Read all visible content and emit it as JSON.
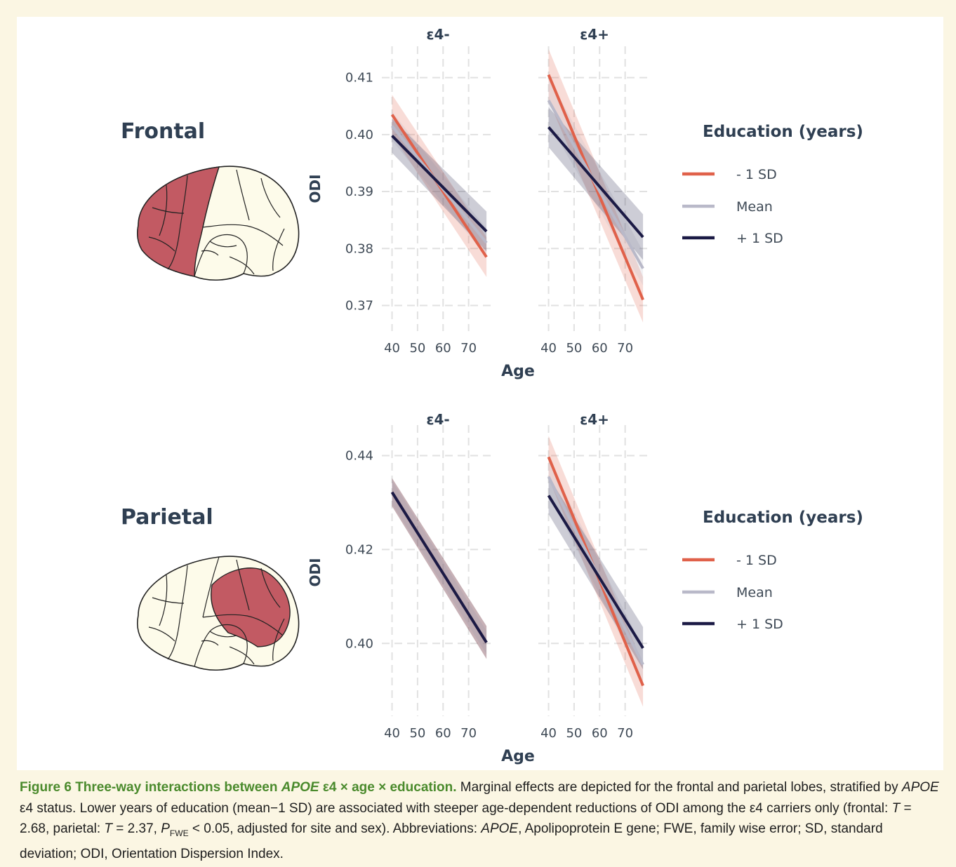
{
  "colors": {
    "minus_sd": "#e0614a",
    "mean": "#b9b9c9",
    "plus_sd": "#1b1a45",
    "region_fill": "#c25a63",
    "brain_fill": "#fdfbea",
    "background": "#fbf6e3",
    "caption_label": "#4a8a2c"
  },
  "rows": [
    {
      "region": "Frontal",
      "highlighted_lobe": "frontal",
      "legend": {
        "title": "Education (years)",
        "items": [
          {
            "label": "- 1 SD",
            "color": "#e0614a"
          },
          {
            "label": "Mean",
            "color": "#b9b9c9"
          },
          {
            "label": "+ 1 SD",
            "color": "#1b1a45"
          }
        ]
      }
    },
    {
      "region": "Parietal",
      "highlighted_lobe": "parietal",
      "legend": {
        "title": "Education (years)",
        "items": [
          {
            "label": "- 1 SD",
            "color": "#e0614a"
          },
          {
            "label": "Mean",
            "color": "#b9b9c9"
          },
          {
            "label": "+ 1 SD",
            "color": "#1b1a45"
          }
        ]
      }
    }
  ],
  "chart_data": [
    {
      "type": "line",
      "region": "Frontal",
      "facet": "ε4-",
      "xlabel": "Age",
      "ylabel": "ODI",
      "xlim": [
        36,
        80
      ],
      "ylim": [
        0.3655,
        0.4155
      ],
      "xticks": [
        40,
        50,
        60,
        70
      ],
      "yticks": [
        0.37,
        0.38,
        0.39,
        0.4,
        0.41
      ],
      "ytick_labels": [
        "0.37",
        "0.38",
        "0.39",
        "0.40",
        "0.41"
      ],
      "grid": true,
      "x": [
        40,
        77
      ],
      "series": [
        {
          "name": "- 1 SD",
          "color": "#e0614a",
          "values": [
            0.4035,
            0.3785
          ],
          "ci": [
            0.0035,
            0.0035
          ]
        },
        {
          "name": "Mean",
          "color": "#b9b9c9",
          "values": [
            0.4015,
            0.381
          ],
          "ci": [
            0.0025,
            0.0025
          ]
        },
        {
          "name": "+ 1 SD",
          "color": "#1b1a45",
          "values": [
            0.3998,
            0.383
          ],
          "ci": [
            0.003,
            0.0035
          ]
        }
      ]
    },
    {
      "type": "line",
      "region": "Frontal",
      "facet": "ε4+",
      "xlabel": "Age",
      "ylabel": "ODI",
      "xlim": [
        36,
        80
      ],
      "ylim": [
        0.3655,
        0.4155
      ],
      "xticks": [
        40,
        50,
        60,
        70
      ],
      "yticks": [
        0.37,
        0.38,
        0.39,
        0.4,
        0.41
      ],
      "ytick_labels": [
        "0.37",
        "0.38",
        "0.39",
        "0.40",
        "0.41"
      ],
      "grid": true,
      "x": [
        40,
        77
      ],
      "series": [
        {
          "name": "- 1 SD",
          "color": "#e0614a",
          "values": [
            0.4105,
            0.371
          ],
          "ci": [
            0.0045,
            0.004
          ]
        },
        {
          "name": "Mean",
          "color": "#b9b9c9",
          "values": [
            0.406,
            0.3765
          ],
          "ci": [
            0.004,
            0.003
          ]
        },
        {
          "name": "+ 1 SD",
          "color": "#1b1a45",
          "values": [
            0.4013,
            0.382
          ],
          "ci": [
            0.0035,
            0.004
          ]
        }
      ]
    },
    {
      "type": "line",
      "region": "Parietal",
      "facet": "ε4-",
      "xlabel": "Age",
      "ylabel": "ODI",
      "xlim": [
        36,
        80
      ],
      "ylim": [
        0.3845,
        0.4465
      ],
      "xticks": [
        40,
        50,
        60,
        70
      ],
      "yticks": [
        0.4,
        0.42,
        0.44
      ],
      "ytick_labels": [
        "0.40",
        "0.42",
        "0.44"
      ],
      "grid": true,
      "x": [
        40,
        77
      ],
      "series": [
        {
          "name": "- 1 SD",
          "color": "#e0614a",
          "values": [
            0.4322,
            0.4002
          ],
          "ci": [
            0.003,
            0.0035
          ]
        },
        {
          "name": "Mean",
          "color": "#b9b9c9",
          "values": [
            0.4322,
            0.4002
          ],
          "ci": [
            0.0025,
            0.0025
          ]
        },
        {
          "name": "+ 1 SD",
          "color": "#1b1a45",
          "values": [
            0.4322,
            0.4002
          ],
          "ci": [
            0.003,
            0.0035
          ]
        }
      ]
    },
    {
      "type": "line",
      "region": "Parietal",
      "facet": "ε4+",
      "xlabel": "Age",
      "ylabel": "ODI",
      "xlim": [
        36,
        80
      ],
      "ylim": [
        0.3845,
        0.4465
      ],
      "xticks": [
        40,
        50,
        60,
        70
      ],
      "yticks": [
        0.4,
        0.42,
        0.44
      ],
      "ytick_labels": [
        "0.40",
        "0.42",
        "0.44"
      ],
      "grid": true,
      "x": [
        40,
        77
      ],
      "series": [
        {
          "name": "- 1 SD",
          "color": "#e0614a",
          "values": [
            0.4397,
            0.391
          ],
          "ci": [
            0.0045,
            0.0045
          ]
        },
        {
          "name": "Mean",
          "color": "#b9b9c9",
          "values": [
            0.4355,
            0.3955
          ],
          "ci": [
            0.0035,
            0.0035
          ]
        },
        {
          "name": "+ 1 SD",
          "color": "#1b1a45",
          "values": [
            0.4315,
            0.399
          ],
          "ci": [
            0.004,
            0.0045
          ]
        }
      ]
    }
  ],
  "caption": {
    "label": "Figure 6",
    "title_part1": "Three-way interactions between ",
    "title_gene": "APOE",
    "title_part2": " ε4 × age × education.",
    "sentence1": " Marginal effects are depicted for the frontal and parietal lobes, stratified by ",
    "gene1": "APOE",
    "sentence2": " ε4 status. Lower years of education (mean−1 SD) are associated with steeper age-dependent reductions of ODI among the ε4 carriers only (frontal: ",
    "t_symbol_1": "T",
    "t_value_1": " = 2.68, parietal: ",
    "t_symbol_2": "T",
    "t_value_2": " = 2.37, ",
    "p_symbol": "P",
    "p_subscript": "FWE",
    "p_value": " < 0.05, adjusted for site and sex). Abbreviations: ",
    "gene2": "APOE",
    "abbreviations": ", Apolipoprotein E gene; FWE, family wise error; SD, standard deviation; ODI, Orientation Dispersion Index."
  }
}
